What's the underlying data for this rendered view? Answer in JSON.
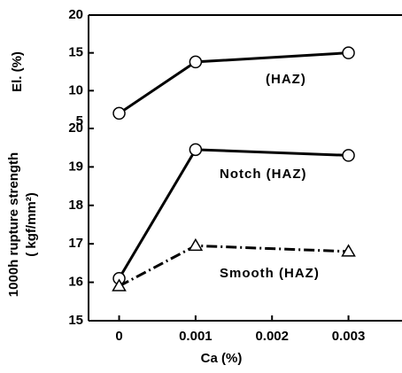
{
  "chart_data": [
    {
      "type": "line",
      "ylabel": "El. (%)",
      "x": [
        0,
        0.001,
        0.003
      ],
      "series": [
        {
          "name": "(HAZ)",
          "color": "#000000",
          "marker": "circle",
          "dash": "solid",
          "values": [
            7.0,
            13.8,
            15.0
          ]
        }
      ],
      "xlim": [
        -0.0004,
        0.0037
      ],
      "ylim": [
        5,
        20
      ],
      "yticks": [
        5,
        10,
        15,
        20
      ]
    },
    {
      "type": "line",
      "ylabel": [
        "1000h rupture strength",
        "( kgf/mm²)"
      ],
      "xlabel": "Ca (%)",
      "x": [
        0,
        0.001,
        0.003
      ],
      "series": [
        {
          "name": "Notch (HAZ)",
          "color": "#000000",
          "marker": "circle",
          "dash": "solid",
          "values": [
            16.1,
            19.45,
            19.3
          ]
        },
        {
          "name": "Smooth (HAZ)",
          "color": "#000000",
          "marker": "triangle",
          "dash": "dashdot",
          "values": [
            15.9,
            16.95,
            16.8
          ]
        }
      ],
      "xlim": [
        -0.0004,
        0.0037
      ],
      "xticks": [
        0,
        0.001,
        0.002,
        0.003
      ],
      "ylim": [
        15,
        20
      ],
      "yticks": [
        15,
        16,
        17,
        18,
        19,
        20
      ]
    }
  ]
}
